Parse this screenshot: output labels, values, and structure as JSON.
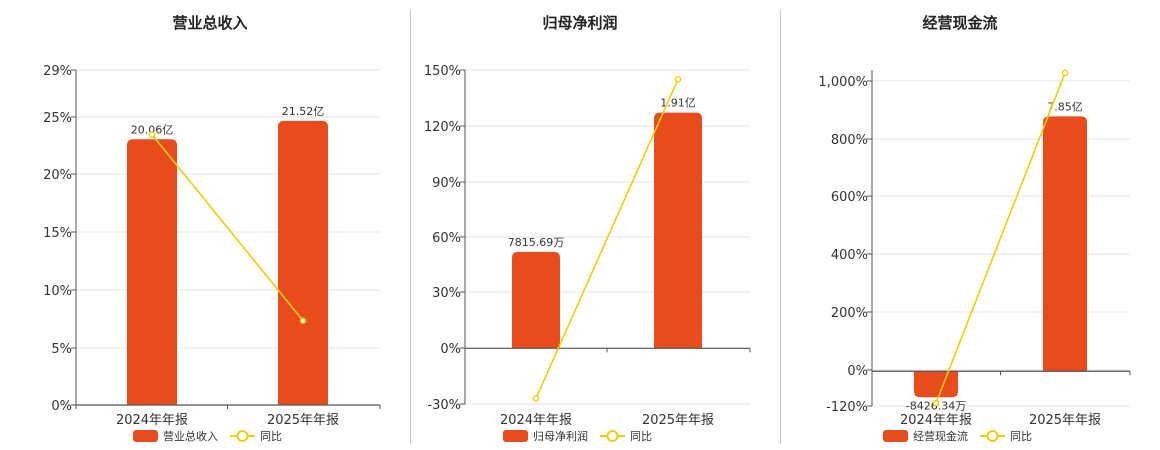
{
  "chart_data": [
    {
      "type": "bar",
      "title": "营业总收入",
      "categories": [
        "2024年年报",
        "2025年年报"
      ],
      "y_ticks": [
        "0%",
        "5%",
        "10%",
        "15%",
        "20%",
        "25%",
        "29%"
      ],
      "ylim": [
        0,
        29
      ],
      "series": [
        {
          "name": "营业总收入",
          "kind": "bar",
          "values": [
            23,
            24.6
          ],
          "labels": [
            "20.06亿",
            "21.52亿"
          ],
          "color": "#e84c1c"
        },
        {
          "name": "同比",
          "kind": "line",
          "values": [
            23.4,
            7.3
          ],
          "color": "#f2cc0c"
        }
      ],
      "legend": "bottom"
    },
    {
      "type": "bar",
      "title": "归母净利润",
      "categories": [
        "2024年年报",
        "2025年年报"
      ],
      "y_ticks": [
        "-30%",
        "0%",
        "30%",
        "60%",
        "90%",
        "120%",
        "150%"
      ],
      "ylim": [
        -30,
        150
      ],
      "series": [
        {
          "name": "归母净利润",
          "kind": "bar",
          "values": [
            52,
            127
          ],
          "labels": [
            "7815.69万",
            "1.91亿"
          ],
          "color": "#e84c1c"
        },
        {
          "name": "同比",
          "kind": "line",
          "values": [
            -27,
            145
          ],
          "color": "#f2cc0c"
        }
      ],
      "legend": "bottom"
    },
    {
      "type": "bar",
      "title": "经营现金流",
      "categories": [
        "2024年年报",
        "2025年年报"
      ],
      "y_ticks": [
        "-120%",
        "0%",
        "200%",
        "400%",
        "600%",
        "800%",
        "1,000%"
      ],
      "ylim": [
        -120,
        1040
      ],
      "series": [
        {
          "name": "经营现金流",
          "kind": "bar",
          "values": [
            -90,
            880
          ],
          "labels": [
            "-8426.34万",
            "7.85亿"
          ],
          "color": "#e84c1c"
        },
        {
          "name": "同比",
          "kind": "line",
          "values": [
            -110,
            1030
          ],
          "color": "#f2cc0c"
        }
      ],
      "legend": "bottom"
    }
  ]
}
